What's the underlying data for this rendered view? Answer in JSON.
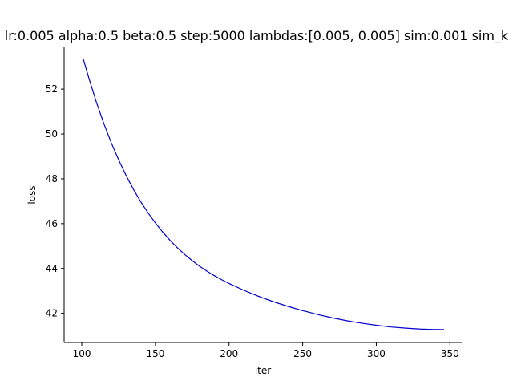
{
  "chart_data": {
    "type": "line",
    "title": "lr:0.005 alpha:0.5 beta:0.5 step:5000 lambdas:[0.005, 0.005] sim:0.001 sim_k",
    "xlabel": "iter",
    "ylabel": "loss",
    "xlim": [
      88,
      358
    ],
    "ylim": [
      40.7,
      53.9
    ],
    "xticks": [
      100,
      150,
      200,
      250,
      300,
      350
    ],
    "yticks": [
      42,
      44,
      46,
      48,
      50,
      52
    ],
    "grid": false,
    "series": [
      {
        "color": "#0000cc",
        "x": [
          101,
          105,
          110,
          115,
          120,
          125,
          130,
          135,
          140,
          145,
          150,
          155,
          160,
          165,
          170,
          175,
          180,
          185,
          190,
          195,
          200,
          210,
          220,
          230,
          240,
          250,
          260,
          270,
          280,
          290,
          300,
          310,
          320,
          330,
          340,
          346
        ],
        "y": [
          53.35,
          52.45,
          51.4,
          50.46,
          49.61,
          48.85,
          48.16,
          47.54,
          46.98,
          46.48,
          46.03,
          45.62,
          45.25,
          44.92,
          44.62,
          44.35,
          44.1,
          43.88,
          43.68,
          43.5,
          43.33,
          43.03,
          42.76,
          42.52,
          42.31,
          42.12,
          41.95,
          41.8,
          41.67,
          41.56,
          41.47,
          41.39,
          41.34,
          41.3,
          41.28,
          41.28
        ]
      }
    ]
  }
}
